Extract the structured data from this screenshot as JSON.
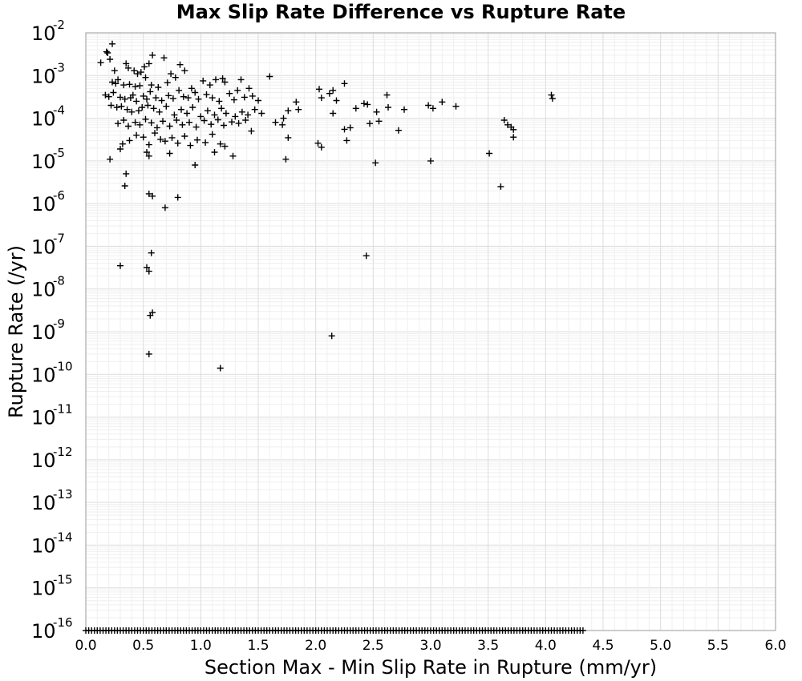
{
  "chart_data": {
    "type": "scatter",
    "title": "Max Slip Rate Difference vs Rupture Rate",
    "xlabel": "Section Max - Min Slip Rate in Rupture (mm/yr)",
    "ylabel": "Rupture Rate (/yr)",
    "xlim": [
      0.0,
      6.0
    ],
    "ylim": [
      1e-16,
      0.01
    ],
    "y_scale": "log",
    "grid": true,
    "marker": "plus",
    "x_tick_labels": [
      "0.0",
      "0.5",
      "1.0",
      "1.5",
      "2.0",
      "2.5",
      "3.0",
      "3.5",
      "4.0",
      "4.5",
      "5.0",
      "5.5",
      "6.0"
    ],
    "y_tick_labels": [
      {
        "base": "10",
        "exp": "-2"
      },
      {
        "base": "10",
        "exp": "-3"
      },
      {
        "base": "10",
        "exp": "-4"
      },
      {
        "base": "10",
        "exp": "-5"
      },
      {
        "base": "10",
        "exp": "-6"
      },
      {
        "base": "10",
        "exp": "-7"
      },
      {
        "base": "10",
        "exp": "-8"
      },
      {
        "base": "10",
        "exp": "-9"
      },
      {
        "base": "10",
        "exp": "-10"
      },
      {
        "base": "10",
        "exp": "-11"
      },
      {
        "base": "10",
        "exp": "-12"
      },
      {
        "base": "10",
        "exp": "-13"
      },
      {
        "base": "10",
        "exp": "-14"
      },
      {
        "base": "10",
        "exp": "-15"
      },
      {
        "base": "10",
        "exp": "-16"
      }
    ],
    "points": [
      [
        0.23,
        0.0055
      ],
      [
        0.18,
        0.0036
      ],
      [
        0.19,
        0.0034
      ],
      [
        0.21,
        0.0024
      ],
      [
        0.13,
        0.002
      ],
      [
        0.25,
        0.0013
      ],
      [
        0.35,
        0.0019
      ],
      [
        0.37,
        0.0015
      ],
      [
        0.42,
        0.0013
      ],
      [
        0.45,
        0.0011
      ],
      [
        0.48,
        0.0012
      ],
      [
        0.51,
        0.0016
      ],
      [
        0.55,
        0.0019
      ],
      [
        0.58,
        0.003
      ],
      [
        0.68,
        0.0026
      ],
      [
        0.82,
        0.0018
      ],
      [
        0.86,
        0.0013
      ],
      [
        0.74,
        0.0011
      ],
      [
        0.23,
        0.0007
      ],
      [
        0.26,
        0.00065
      ],
      [
        0.28,
        0.0008
      ],
      [
        0.33,
        0.0006
      ],
      [
        0.38,
        0.00062
      ],
      [
        0.43,
        0.00055
      ],
      [
        0.47,
        0.00058
      ],
      [
        0.52,
        0.0009
      ],
      [
        0.57,
        0.0006
      ],
      [
        0.63,
        0.00053
      ],
      [
        0.71,
        0.00068
      ],
      [
        0.78,
        0.0009
      ],
      [
        0.92,
        0.0005
      ],
      [
        1.02,
        0.00075
      ],
      [
        1.08,
        0.0006
      ],
      [
        1.13,
        0.0008
      ],
      [
        1.19,
        0.00085
      ],
      [
        1.21,
        0.0007
      ],
      [
        1.35,
        0.0008
      ],
      [
        1.6,
        0.00095
      ],
      [
        1.42,
        0.0005
      ],
      [
        1.32,
        0.00045
      ],
      [
        2.03,
        0.00048
      ],
      [
        2.12,
        0.00038
      ],
      [
        2.15,
        0.00045
      ],
      [
        2.25,
        0.00065
      ],
      [
        2.62,
        0.00035
      ],
      [
        4.05,
        0.00035
      ],
      [
        4.06,
        0.00029
      ],
      [
        0.17,
        0.00035
      ],
      [
        0.2,
        0.00032
      ],
      [
        0.24,
        0.0004
      ],
      [
        0.3,
        0.00031
      ],
      [
        0.34,
        0.00028
      ],
      [
        0.39,
        0.0003
      ],
      [
        0.41,
        0.00035
      ],
      [
        0.44,
        0.00025
      ],
      [
        0.5,
        0.00033
      ],
      [
        0.53,
        0.00028
      ],
      [
        0.56,
        0.00042
      ],
      [
        0.61,
        0.0003
      ],
      [
        0.66,
        0.00026
      ],
      [
        0.72,
        0.00034
      ],
      [
        0.76,
        0.00029
      ],
      [
        0.81,
        0.00045
      ],
      [
        0.85,
        0.00032
      ],
      [
        0.89,
        0.0003
      ],
      [
        0.95,
        0.0004
      ],
      [
        0.98,
        0.00028
      ],
      [
        1.05,
        0.00036
      ],
      [
        1.1,
        0.0003
      ],
      [
        1.16,
        0.00025
      ],
      [
        1.25,
        0.00038
      ],
      [
        1.29,
        0.00027
      ],
      [
        1.38,
        0.00031
      ],
      [
        1.45,
        0.00033
      ],
      [
        1.5,
        0.00026
      ],
      [
        1.83,
        0.00024
      ],
      [
        2.05,
        0.0003
      ],
      [
        2.18,
        0.00026
      ],
      [
        2.42,
        0.00022
      ],
      [
        2.45,
        0.00021
      ],
      [
        2.98,
        0.0002
      ],
      [
        3.1,
        0.00024
      ],
      [
        3.22,
        0.00019
      ],
      [
        0.22,
        0.0002
      ],
      [
        0.27,
        0.00018
      ],
      [
        0.31,
        0.00019
      ],
      [
        0.36,
        0.00016
      ],
      [
        0.4,
        0.00014
      ],
      [
        0.46,
        0.00015
      ],
      [
        0.49,
        0.00018
      ],
      [
        0.54,
        0.0002
      ],
      [
        0.59,
        0.00017
      ],
      [
        0.64,
        0.00014
      ],
      [
        0.7,
        0.00019
      ],
      [
        0.77,
        0.00012
      ],
      [
        0.83,
        0.00016
      ],
      [
        0.88,
        0.00013
      ],
      [
        0.93,
        0.00018
      ],
      [
        1.0,
        0.00011
      ],
      [
        1.06,
        0.00015
      ],
      [
        1.12,
        0.00012
      ],
      [
        1.18,
        0.00017
      ],
      [
        1.22,
        0.00013
      ],
      [
        1.3,
        0.00011
      ],
      [
        1.36,
        0.00014
      ],
      [
        1.41,
        0.00012
      ],
      [
        1.47,
        0.00016
      ],
      [
        1.53,
        0.00013
      ],
      [
        1.72,
        0.0001
      ],
      [
        1.76,
        0.00015
      ],
      [
        1.85,
        0.00016
      ],
      [
        2.15,
        0.00013
      ],
      [
        2.35,
        0.00017
      ],
      [
        2.53,
        0.00014
      ],
      [
        2.63,
        0.00018
      ],
      [
        2.77,
        0.00016
      ],
      [
        3.02,
        0.00017
      ],
      [
        0.28,
        7.5e-05
      ],
      [
        0.33,
        9e-05
      ],
      [
        0.37,
        6.5e-05
      ],
      [
        0.43,
        8e-05
      ],
      [
        0.47,
        7e-05
      ],
      [
        0.52,
        9.5e-05
      ],
      [
        0.57,
        7.8e-05
      ],
      [
        0.62,
        6e-05
      ],
      [
        0.67,
        8.5e-05
      ],
      [
        0.73,
        6.5e-05
      ],
      [
        0.79,
        9e-05
      ],
      [
        0.84,
        7e-05
      ],
      [
        0.9,
        8e-05
      ],
      [
        0.96,
        6.2e-05
      ],
      [
        1.03,
        8.8e-05
      ],
      [
        1.09,
        7.2e-05
      ],
      [
        1.15,
        9.2e-05
      ],
      [
        1.2,
        6.8e-05
      ],
      [
        1.27,
        8.2e-05
      ],
      [
        1.33,
        7.6e-05
      ],
      [
        1.39,
        9e-05
      ],
      [
        1.44,
        5e-05
      ],
      [
        1.65,
        8e-05
      ],
      [
        1.71,
        7e-05
      ],
      [
        2.25,
        5.5e-05
      ],
      [
        2.3,
        6e-05
      ],
      [
        2.47,
        7.5e-05
      ],
      [
        2.55,
        8.5e-05
      ],
      [
        2.72,
        5.2e-05
      ],
      [
        3.64,
        9e-05
      ],
      [
        3.67,
        7e-05
      ],
      [
        3.7,
        6.2e-05
      ],
      [
        3.72,
        5.4e-05
      ],
      [
        0.32,
        2.5e-05
      ],
      [
        0.3,
        1.9e-05
      ],
      [
        0.38,
        3e-05
      ],
      [
        0.44,
        4e-05
      ],
      [
        0.5,
        3.6e-05
      ],
      [
        0.55,
        2.4e-05
      ],
      [
        0.6,
        4.5e-05
      ],
      [
        0.65,
        3.2e-05
      ],
      [
        0.69,
        2.9e-05
      ],
      [
        0.75,
        3.5e-05
      ],
      [
        0.8,
        2.6e-05
      ],
      [
        0.86,
        3.8e-05
      ],
      [
        0.91,
        2.3e-05
      ],
      [
        0.97,
        3.1e-05
      ],
      [
        1.04,
        2.7e-05
      ],
      [
        1.1,
        4.2e-05
      ],
      [
        1.17,
        2.5e-05
      ],
      [
        1.21,
        2.2e-05
      ],
      [
        1.76,
        3.5e-05
      ],
      [
        2.02,
        2.6e-05
      ],
      [
        2.05,
        2.1e-05
      ],
      [
        2.27,
        3e-05
      ],
      [
        3.72,
        3.6e-05
      ],
      [
        0.21,
        1.1e-05
      ],
      [
        0.53,
        1.6e-05
      ],
      [
        0.55,
        1.3e-05
      ],
      [
        0.73,
        1.5e-05
      ],
      [
        0.95,
        8e-06
      ],
      [
        1.12,
        1.6e-05
      ],
      [
        1.28,
        1.3e-05
      ],
      [
        1.74,
        1.1e-05
      ],
      [
        2.52,
        9e-06
      ],
      [
        3.0,
        1e-05
      ],
      [
        3.51,
        1.5e-05
      ],
      [
        0.35,
        5e-06
      ],
      [
        0.34,
        2.6e-06
      ],
      [
        0.55,
        1.7e-06
      ],
      [
        0.58,
        1.5e-06
      ],
      [
        0.8,
        1.4e-06
      ],
      [
        0.69,
        8e-07
      ],
      [
        3.61,
        2.5e-06
      ],
      [
        0.57,
        7e-08
      ],
      [
        2.44,
        6e-08
      ],
      [
        0.3,
        3.5e-08
      ],
      [
        0.53,
        3.2e-08
      ],
      [
        0.55,
        2.6e-08
      ],
      [
        0.58,
        2.8e-09
      ],
      [
        0.56,
        2.4e-09
      ],
      [
        2.14,
        8e-10
      ],
      [
        0.55,
        3e-10
      ],
      [
        1.17,
        1.4e-10
      ]
    ],
    "floor_band": {
      "y": 1e-16,
      "x_start": 0.0,
      "x_end": 4.33,
      "step": 0.025
    }
  }
}
